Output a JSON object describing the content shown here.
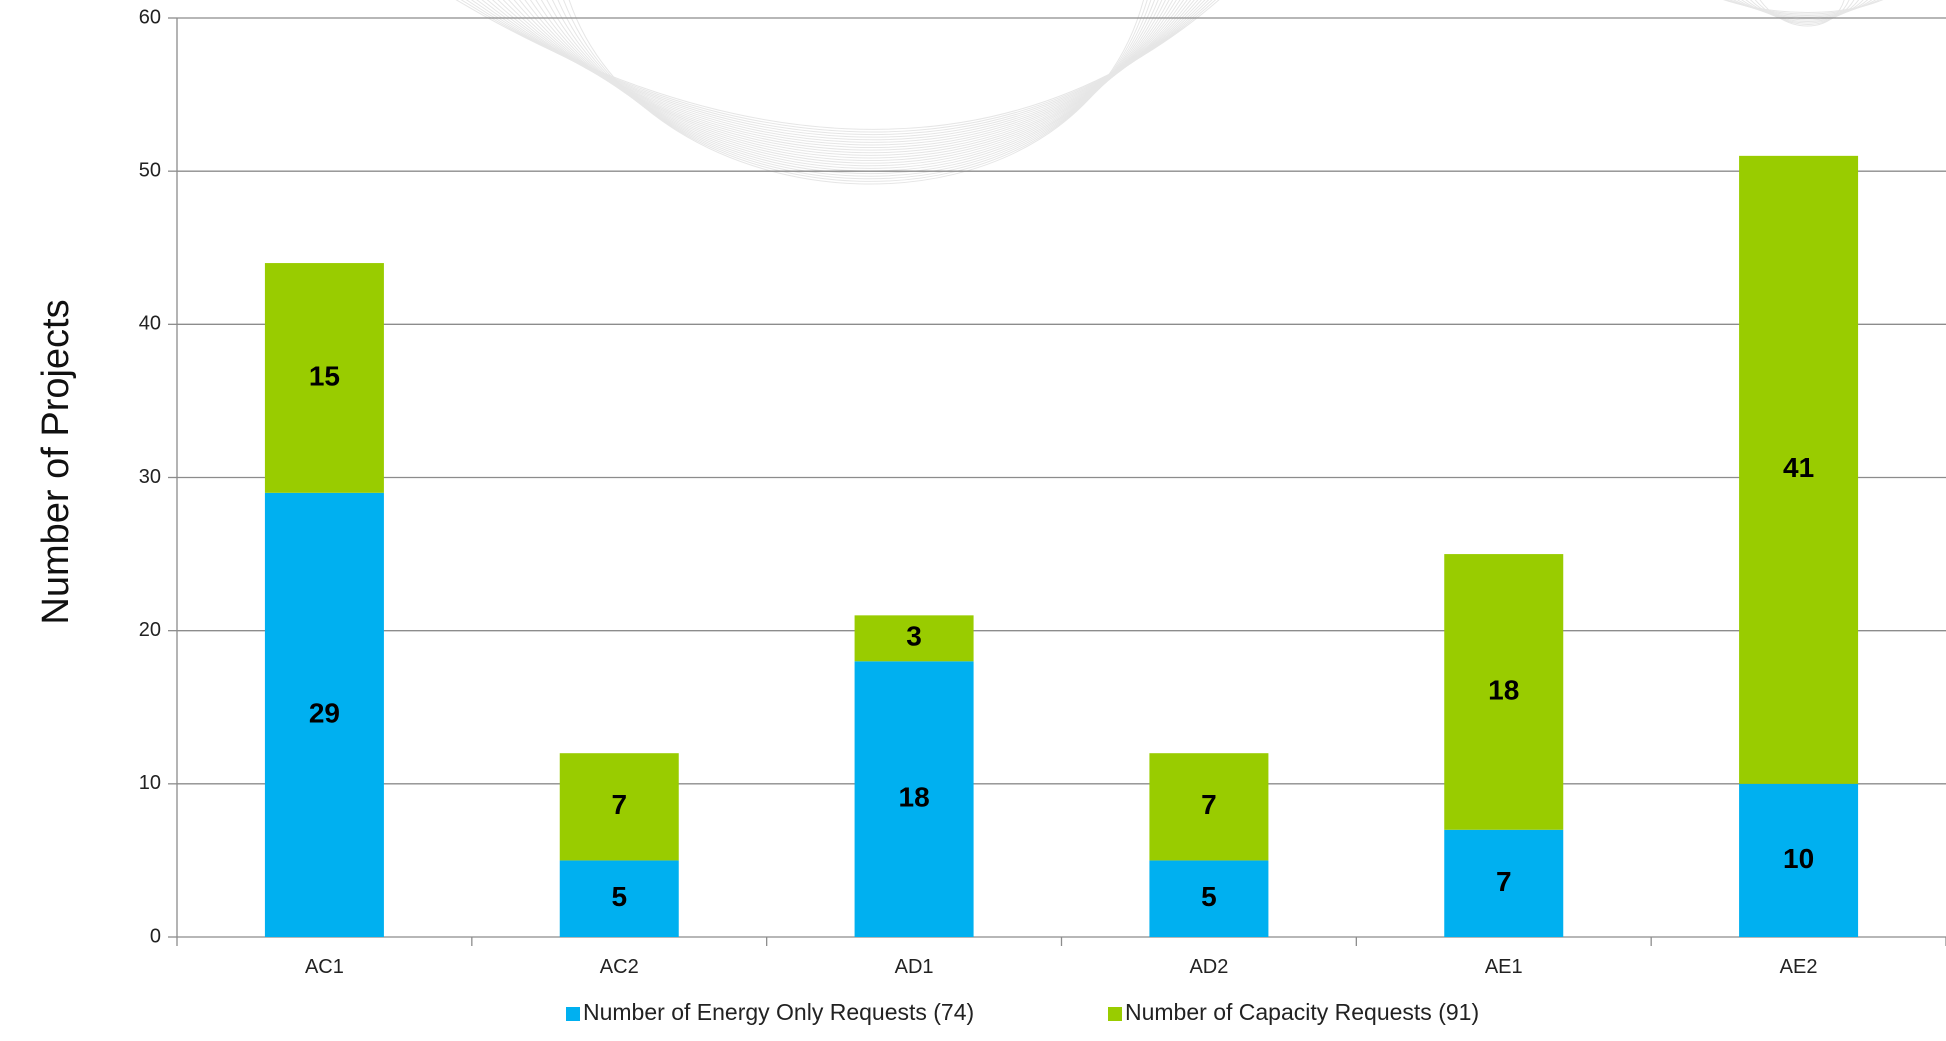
{
  "chart_data": {
    "type": "bar",
    "stacked": true,
    "title": "",
    "xlabel": "",
    "ylabel": "Number of Projects",
    "ylim": [
      0,
      60
    ],
    "yticks": [
      0,
      10,
      20,
      30,
      40,
      50,
      60
    ],
    "grid": true,
    "legend_position": "bottom",
    "categories": [
      "AC1",
      "AC2",
      "AD1",
      "AD2",
      "AE1",
      "AE2"
    ],
    "series": [
      {
        "name": "Number of Energy Only Requests (74)",
        "color": "#00B0F0",
        "values": [
          29,
          5,
          18,
          5,
          7,
          10
        ]
      },
      {
        "name": "Number of Capacity Requests (91)",
        "color": "#99CC00",
        "values": [
          15,
          7,
          3,
          7,
          18,
          41
        ]
      }
    ]
  }
}
